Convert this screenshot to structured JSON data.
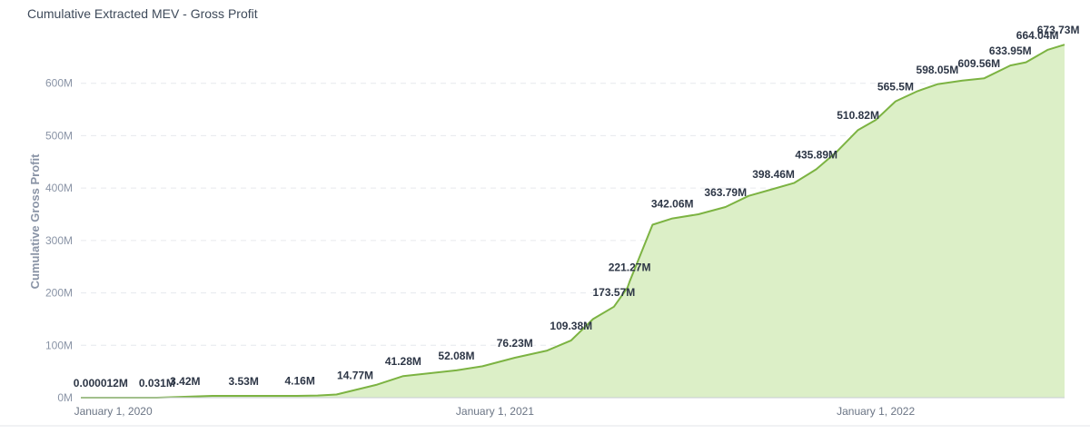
{
  "title": "Cumulative Extracted MEV - Gross Profit",
  "chart_data": {
    "type": "area",
    "title": "Cumulative Extracted MEV - Gross Profit",
    "xlabel": "",
    "ylabel": "Cumulative Gross Profit",
    "y_unit": "M",
    "ylim": [
      0,
      700
    ],
    "xlim": [
      "2019-12-01",
      "2022-07-01"
    ],
    "yticks": [
      0,
      100,
      200,
      300,
      400,
      500,
      600
    ],
    "ytick_labels": [
      "0M",
      "100M",
      "200M",
      "300M",
      "400M",
      "500M",
      "600M"
    ],
    "xticks": [
      "2020-01-01",
      "2021-01-01",
      "2022-01-01"
    ],
    "xtick_labels": [
      "January 1, 2020",
      "January 1, 2021",
      "January 1, 2022"
    ],
    "grid": true,
    "color": "#7cb342",
    "fill_color": "#dcefc7",
    "series": [
      {
        "x": [
          "2019-12-01",
          "2020-01-01",
          "2020-02-12",
          "2020-04-05",
          "2020-06-25",
          "2020-07-15",
          "2020-08-02",
          "2020-08-20",
          "2020-09-10",
          "2020-10-05",
          "2020-11-01",
          "2020-11-25",
          "2020-12-20",
          "2021-01-20",
          "2021-02-20",
          "2021-03-15",
          "2021-04-05",
          "2021-04-25",
          "2021-05-08",
          "2021-05-10",
          "2021-06-01",
          "2021-06-20",
          "2021-07-15",
          "2021-08-10",
          "2021-09-01",
          "2021-09-25",
          "2021-10-15",
          "2021-11-05",
          "2021-11-25",
          "2021-12-15",
          "2022-01-01",
          "2022-01-20",
          "2022-02-10",
          "2022-03-01",
          "2022-03-25",
          "2022-04-15",
          "2022-05-10",
          "2022-05-25",
          "2022-06-15",
          "2022-07-01"
        ],
        "y": [
          1.2e-05,
          1.2e-05,
          0.031,
          3.42,
          3.53,
          4.16,
          6,
          14.77,
          25,
          41.28,
          47,
          52.08,
          60,
          76.23,
          90,
          109.38,
          150,
          173.57,
          210,
          221.27,
          330,
          342.06,
          350,
          363.79,
          385,
          398.46,
          410,
          435.89,
          470,
          510.82,
          530,
          565.5,
          585,
          598.05,
          605,
          609.56,
          633.95,
          640,
          664.04,
          673.73
        ]
      }
    ],
    "data_labels": [
      {
        "x": "2019-12-20",
        "y": 1.2e-05,
        "text": "0.000012M"
      },
      {
        "x": "2020-02-12",
        "y": 0.031,
        "text": "0.031M"
      },
      {
        "x": "2020-03-10",
        "y": 3.42,
        "text": "3.42M"
      },
      {
        "x": "2020-05-05",
        "y": 3.53,
        "text": "3.53M"
      },
      {
        "x": "2020-06-28",
        "y": 4.16,
        "text": "4.16M"
      },
      {
        "x": "2020-08-20",
        "y": 14.77,
        "text": "14.77M"
      },
      {
        "x": "2020-10-05",
        "y": 41.28,
        "text": "41.28M"
      },
      {
        "x": "2020-11-25",
        "y": 52.08,
        "text": "52.08M"
      },
      {
        "x": "2021-01-20",
        "y": 76.23,
        "text": "76.23M"
      },
      {
        "x": "2021-03-15",
        "y": 109.38,
        "text": "109.38M"
      },
      {
        "x": "2021-04-25",
        "y": 173.57,
        "text": "173.57M"
      },
      {
        "x": "2021-05-10",
        "y": 221.27,
        "text": "221.27M"
      },
      {
        "x": "2021-06-20",
        "y": 342.06,
        "text": "342.06M"
      },
      {
        "x": "2021-08-10",
        "y": 363.79,
        "text": "363.79M"
      },
      {
        "x": "2021-09-25",
        "y": 398.46,
        "text": "398.46M"
      },
      {
        "x": "2021-11-05",
        "y": 435.89,
        "text": "435.89M"
      },
      {
        "x": "2021-12-15",
        "y": 510.82,
        "text": "510.82M"
      },
      {
        "x": "2022-01-20",
        "y": 565.5,
        "text": "565.5M"
      },
      {
        "x": "2022-03-01",
        "y": 598.05,
        "text": "598.05M"
      },
      {
        "x": "2022-04-10",
        "y": 609.56,
        "text": "609.56M"
      },
      {
        "x": "2022-05-10",
        "y": 633.95,
        "text": "633.95M"
      },
      {
        "x": "2022-06-05",
        "y": 664.04,
        "text": "664.04M"
      },
      {
        "x": "2022-06-25",
        "y": 673.73,
        "text": "673.73M"
      }
    ]
  }
}
